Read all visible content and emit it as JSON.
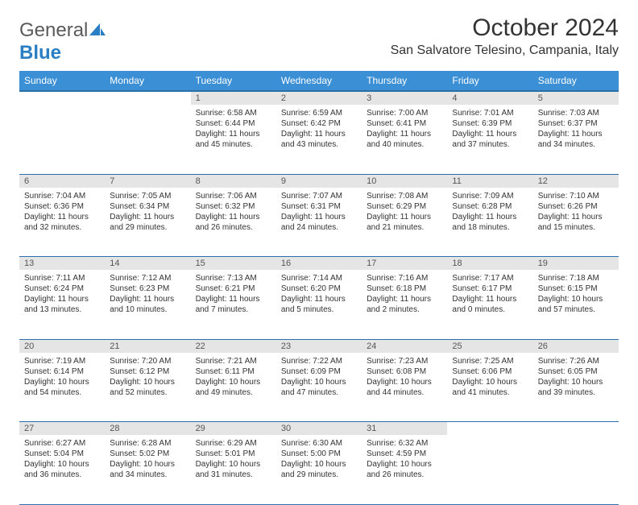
{
  "brand": {
    "part1": "General",
    "part2": "Blue"
  },
  "title": "October 2024",
  "location": "San Salvatore Telesino, Campania, Italy",
  "colors": {
    "header_bg": "#3b8fd4",
    "header_border": "#2a6fa8",
    "daynum_bg": "#e5e5e5",
    "text": "#333333",
    "brand_gray": "#5a5a5a",
    "brand_blue": "#2a7ec4"
  },
  "weekdays": [
    "Sunday",
    "Monday",
    "Tuesday",
    "Wednesday",
    "Thursday",
    "Friday",
    "Saturday"
  ],
  "first_weekday_index": 2,
  "days": [
    {
      "n": 1,
      "sunrise": "6:58 AM",
      "sunset": "6:44 PM",
      "daylight": "11 hours and 45 minutes."
    },
    {
      "n": 2,
      "sunrise": "6:59 AM",
      "sunset": "6:42 PM",
      "daylight": "11 hours and 43 minutes."
    },
    {
      "n": 3,
      "sunrise": "7:00 AM",
      "sunset": "6:41 PM",
      "daylight": "11 hours and 40 minutes."
    },
    {
      "n": 4,
      "sunrise": "7:01 AM",
      "sunset": "6:39 PM",
      "daylight": "11 hours and 37 minutes."
    },
    {
      "n": 5,
      "sunrise": "7:03 AM",
      "sunset": "6:37 PM",
      "daylight": "11 hours and 34 minutes."
    },
    {
      "n": 6,
      "sunrise": "7:04 AM",
      "sunset": "6:36 PM",
      "daylight": "11 hours and 32 minutes."
    },
    {
      "n": 7,
      "sunrise": "7:05 AM",
      "sunset": "6:34 PM",
      "daylight": "11 hours and 29 minutes."
    },
    {
      "n": 8,
      "sunrise": "7:06 AM",
      "sunset": "6:32 PM",
      "daylight": "11 hours and 26 minutes."
    },
    {
      "n": 9,
      "sunrise": "7:07 AM",
      "sunset": "6:31 PM",
      "daylight": "11 hours and 24 minutes."
    },
    {
      "n": 10,
      "sunrise": "7:08 AM",
      "sunset": "6:29 PM",
      "daylight": "11 hours and 21 minutes."
    },
    {
      "n": 11,
      "sunrise": "7:09 AM",
      "sunset": "6:28 PM",
      "daylight": "11 hours and 18 minutes."
    },
    {
      "n": 12,
      "sunrise": "7:10 AM",
      "sunset": "6:26 PM",
      "daylight": "11 hours and 15 minutes."
    },
    {
      "n": 13,
      "sunrise": "7:11 AM",
      "sunset": "6:24 PM",
      "daylight": "11 hours and 13 minutes."
    },
    {
      "n": 14,
      "sunrise": "7:12 AM",
      "sunset": "6:23 PM",
      "daylight": "11 hours and 10 minutes."
    },
    {
      "n": 15,
      "sunrise": "7:13 AM",
      "sunset": "6:21 PM",
      "daylight": "11 hours and 7 minutes."
    },
    {
      "n": 16,
      "sunrise": "7:14 AM",
      "sunset": "6:20 PM",
      "daylight": "11 hours and 5 minutes."
    },
    {
      "n": 17,
      "sunrise": "7:16 AM",
      "sunset": "6:18 PM",
      "daylight": "11 hours and 2 minutes."
    },
    {
      "n": 18,
      "sunrise": "7:17 AM",
      "sunset": "6:17 PM",
      "daylight": "11 hours and 0 minutes."
    },
    {
      "n": 19,
      "sunrise": "7:18 AM",
      "sunset": "6:15 PM",
      "daylight": "10 hours and 57 minutes."
    },
    {
      "n": 20,
      "sunrise": "7:19 AM",
      "sunset": "6:14 PM",
      "daylight": "10 hours and 54 minutes."
    },
    {
      "n": 21,
      "sunrise": "7:20 AM",
      "sunset": "6:12 PM",
      "daylight": "10 hours and 52 minutes."
    },
    {
      "n": 22,
      "sunrise": "7:21 AM",
      "sunset": "6:11 PM",
      "daylight": "10 hours and 49 minutes."
    },
    {
      "n": 23,
      "sunrise": "7:22 AM",
      "sunset": "6:09 PM",
      "daylight": "10 hours and 47 minutes."
    },
    {
      "n": 24,
      "sunrise": "7:23 AM",
      "sunset": "6:08 PM",
      "daylight": "10 hours and 44 minutes."
    },
    {
      "n": 25,
      "sunrise": "7:25 AM",
      "sunset": "6:06 PM",
      "daylight": "10 hours and 41 minutes."
    },
    {
      "n": 26,
      "sunrise": "7:26 AM",
      "sunset": "6:05 PM",
      "daylight": "10 hours and 39 minutes."
    },
    {
      "n": 27,
      "sunrise": "6:27 AM",
      "sunset": "5:04 PM",
      "daylight": "10 hours and 36 minutes."
    },
    {
      "n": 28,
      "sunrise": "6:28 AM",
      "sunset": "5:02 PM",
      "daylight": "10 hours and 34 minutes."
    },
    {
      "n": 29,
      "sunrise": "6:29 AM",
      "sunset": "5:01 PM",
      "daylight": "10 hours and 31 minutes."
    },
    {
      "n": 30,
      "sunrise": "6:30 AM",
      "sunset": "5:00 PM",
      "daylight": "10 hours and 29 minutes."
    },
    {
      "n": 31,
      "sunrise": "6:32 AM",
      "sunset": "4:59 PM",
      "daylight": "10 hours and 26 minutes."
    }
  ],
  "labels": {
    "sunrise": "Sunrise:",
    "sunset": "Sunset:",
    "daylight": "Daylight:"
  }
}
